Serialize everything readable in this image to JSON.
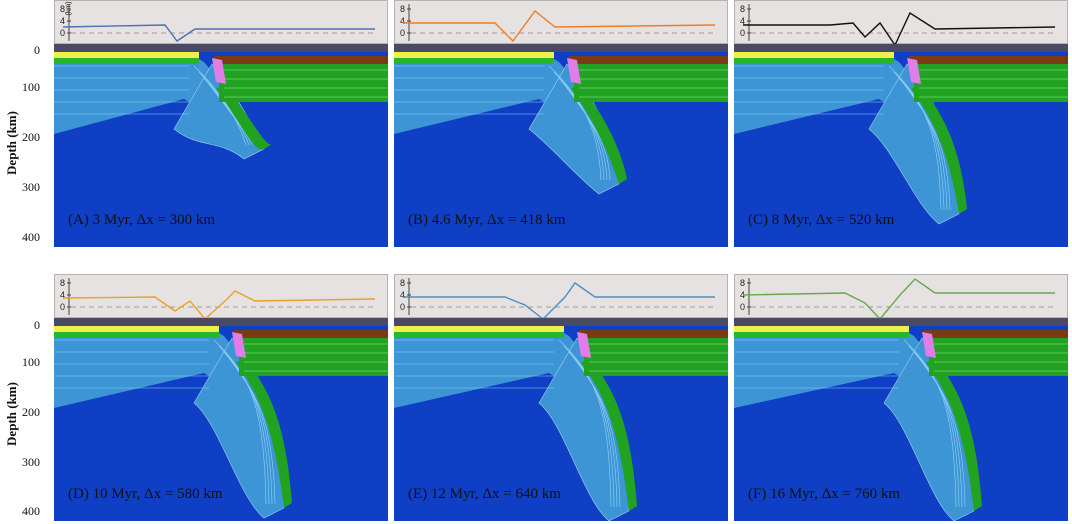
{
  "figure": {
    "y_axis_label": "Depth (km)",
    "depth_ticks": [
      "0",
      "100",
      "200",
      "300",
      "400"
    ],
    "topo_ticks": [
      "8",
      "4",
      "0"
    ],
    "topo_unit": "(km)",
    "colors": {
      "mantle": "#0f3fc4",
      "lithosphere": "#3d95d6",
      "oceanic_crust": "#f0f04a",
      "green_layer": "#21a321",
      "brown_layer": "#7a3a12",
      "pink_melt": "#e07de8",
      "topo_bg": "#e6e2e1"
    }
  },
  "panels": [
    {
      "caption": "(A) 3 Myr,  Δx = 300 km",
      "topo_color": "#4f6fb8"
    },
    {
      "caption": "(B) 4.6 Myr,  Δx = 418 km",
      "topo_color": "#ef7d2a"
    },
    {
      "caption": "(C) 8 Myr,  Δx = 520 km",
      "topo_color": "#111111"
    },
    {
      "caption": "(D) 10 Myr,  Δx = 580 km",
      "topo_color": "#e6a326"
    },
    {
      "caption": "(E) 12 Myr,  Δx = 640 km",
      "topo_color": "#4a8fc6"
    },
    {
      "caption": "(F) 16 Myr,  Δx = 760 km",
      "topo_color": "#6aa84f"
    }
  ]
}
